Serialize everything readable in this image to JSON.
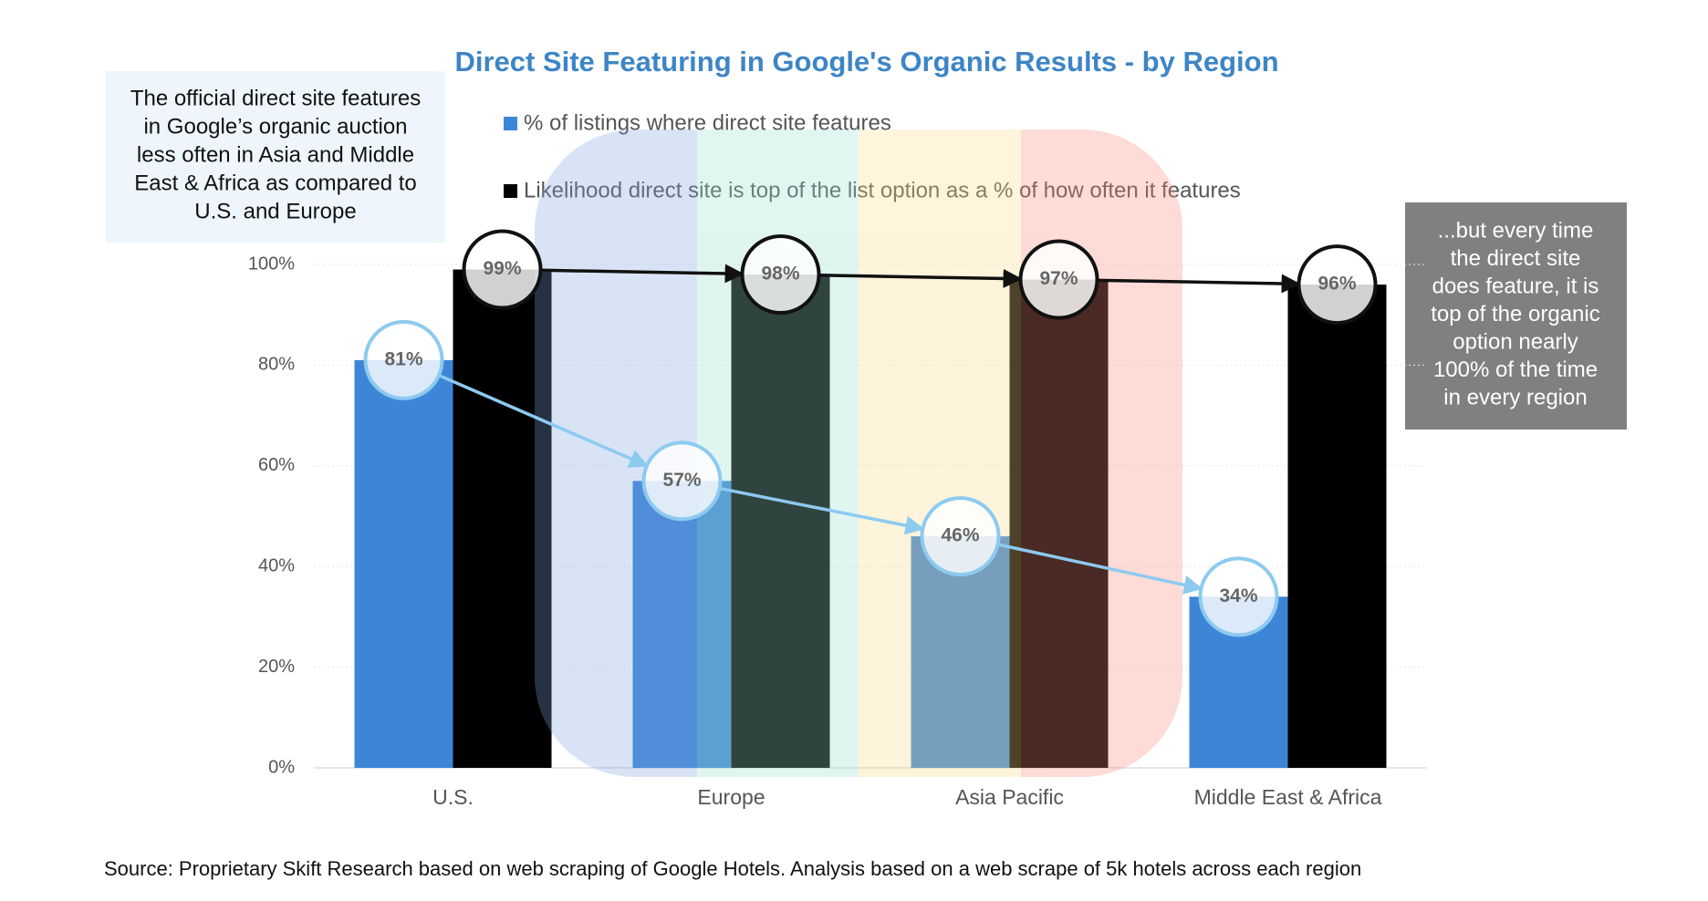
{
  "chart_data": {
    "type": "bar",
    "title": "Direct Site Featuring in Google's Organic Results - by Region",
    "categories": [
      "U.S.",
      "Europe",
      "Asia Pacific",
      "Middle East & Africa"
    ],
    "series": [
      {
        "name": "% of listings where direct site features",
        "color": "#3d85d6",
        "values": [
          81,
          57,
          46,
          34
        ],
        "value_labels": [
          "81%",
          "57%",
          "46%",
          "34%"
        ],
        "circle_color": "#8dcaf0"
      },
      {
        "name": "Likelihood direct site is top of the list option as a % of how often it features",
        "color": "#000000",
        "values": [
          99,
          98,
          97,
          96
        ],
        "value_labels": [
          "99%",
          "98%",
          "97%",
          "96%"
        ],
        "circle_color": "#111111"
      }
    ],
    "ylim": [
      0,
      100
    ],
    "yticks": [
      {
        "value": 0,
        "label": "0%"
      },
      {
        "value": 20,
        "label": "20%"
      },
      {
        "value": 40,
        "label": "40%"
      },
      {
        "value": 60,
        "label": "60%"
      },
      {
        "value": 80,
        "label": "80%"
      },
      {
        "value": 100,
        "label": "100%"
      }
    ],
    "grid": true,
    "annotations": {
      "left_note": [
        "The official direct site features",
        "in Google’s organic auction",
        "less often in Asia and Middle",
        "East & Africa as compared to",
        "U.S. and Europe"
      ],
      "right_note": [
        "...but every time",
        "the direct site",
        "does feature, it is",
        "top of the organic",
        "option nearly",
        "100% of the time",
        "in every region"
      ],
      "source": "Source: Proprietary Skift Research based on web scraping of Google Hotels. Analysis based on a web scrape of 5k hotels across each region"
    }
  }
}
